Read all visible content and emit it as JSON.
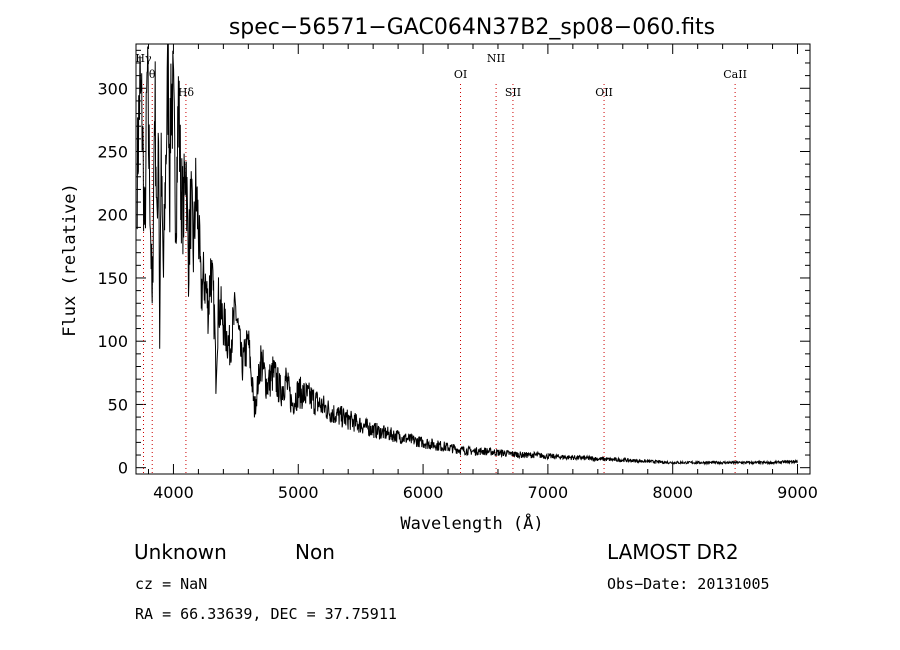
{
  "chart_data": {
    "type": "line",
    "title": "spec−56571−GAC064N37B2_sp08−060.fits",
    "xlabel": "Wavelength (Å)",
    "ylabel": "Flux (relative)",
    "xlim": [
      3700,
      9100
    ],
    "ylim": [
      -5,
      335
    ],
    "x_ticks": [
      4000,
      5000,
      6000,
      7000,
      8000,
      9000
    ],
    "y_ticks": [
      0,
      50,
      100,
      150,
      200,
      250,
      300
    ],
    "grid": false,
    "line_color": "#000000",
    "marker_color": "#cc0000",
    "series": [
      {
        "x": [
          3710,
          3730,
          3750,
          3770,
          3790,
          3800,
          3810,
          3830,
          3850,
          3860,
          3870,
          3880,
          3890,
          3900,
          3920,
          3940,
          3960,
          3970,
          3980,
          4000,
          4020,
          4040,
          4060,
          4080,
          4100,
          4120,
          4140,
          4160,
          4180,
          4200,
          4220,
          4250,
          4280,
          4300,
          4330,
          4340,
          4360,
          4400,
          4450,
          4500,
          4550,
          4600,
          4650,
          4700,
          4750,
          4800,
          4860,
          4900,
          4950,
          5000,
          5100,
          5200,
          5300,
          5400,
          5500,
          5600,
          5700,
          5800,
          5900,
          6000,
          6100,
          6200,
          6300,
          6400,
          6500,
          6600,
          6700,
          6800,
          6900,
          7000,
          7200,
          7400,
          7600,
          7800,
          8000,
          8200,
          8400,
          8600,
          8800,
          9000
        ],
        "y": [
          230,
          300,
          275,
          180,
          310,
          260,
          230,
          120,
          300,
          250,
          170,
          300,
          100,
          240,
          150,
          250,
          320,
          210,
          305,
          280,
          200,
          290,
          220,
          200,
          250,
          160,
          210,
          170,
          220,
          190,
          140,
          150,
          125,
          160,
          115,
          70,
          130,
          115,
          95,
          125,
          80,
          100,
          45,
          85,
          65,
          75,
          60,
          70,
          50,
          60,
          55,
          48,
          42,
          38,
          34,
          30,
          27,
          25,
          22,
          20,
          18,
          16,
          14,
          13,
          13,
          12,
          11,
          10,
          10,
          9,
          8,
          7,
          6,
          5,
          4,
          4,
          4,
          4,
          4,
          5
        ]
      }
    ],
    "annotations": [
      {
        "label": "Hγ",
        "x": 3760
      },
      {
        "label": "θ",
        "x": 3830
      },
      {
        "label": "Hδ",
        "x": 4100
      },
      {
        "label": "OI",
        "x": 6300
      },
      {
        "label": "NII",
        "x": 6585
      },
      {
        "label": "SII",
        "x": 6720
      },
      {
        "label": "OII",
        "x": 7450
      },
      {
        "label": "CaII",
        "x": 8500
      }
    ]
  },
  "info": {
    "class_label": "Unknown",
    "subclass_label": "Non",
    "survey": "LAMOST DR2",
    "cz": "cz = NaN",
    "obs_date": "Obs−Date: 20131005",
    "radec": "RA =  66.33639, DEC =  37.75911"
  }
}
